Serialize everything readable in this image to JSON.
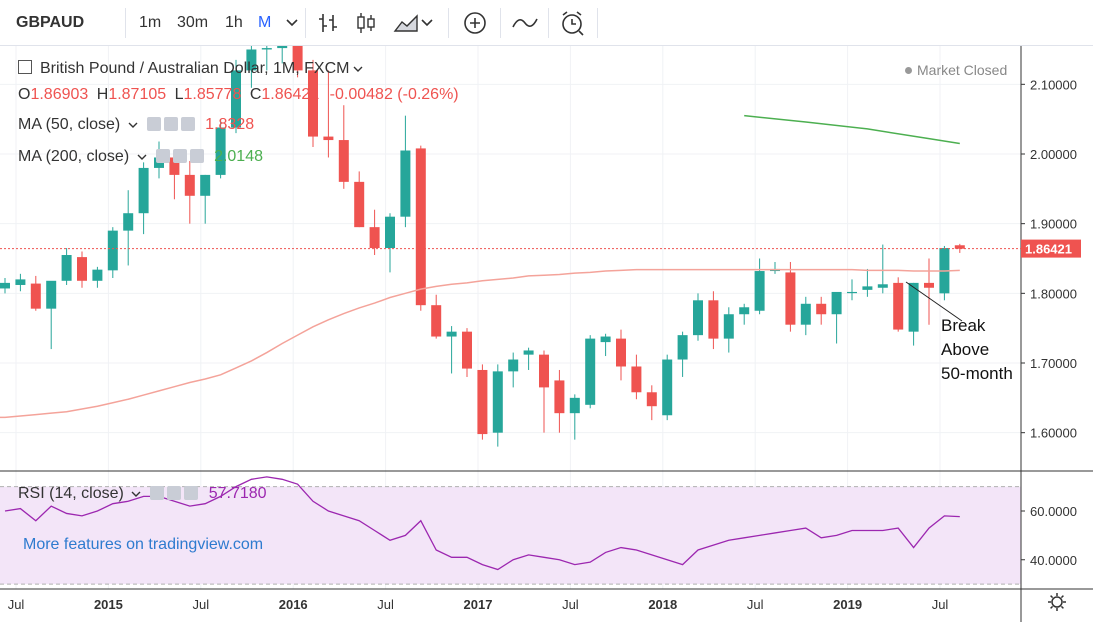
{
  "toolbar": {
    "symbol": "GBPAUD",
    "intervals": [
      "1m",
      "30m",
      "1h",
      "M"
    ],
    "active_interval": "M",
    "icons": [
      "chevron-down-icon",
      "bar-style-icon",
      "candle-style-icon",
      "area-style-icon",
      "add-indicator-icon",
      "compare-icon",
      "alert-clock-icon"
    ]
  },
  "legend": {
    "title": "British Pound / Australian Dollar, 1M, FXCM",
    "market_status": "Market Closed",
    "ohlc": {
      "O": "1.86903",
      "H": "1.87105",
      "L": "1.85778",
      "C": "1.86421",
      "change": "-0.00482 (-0.26%)"
    },
    "ma50": {
      "label": "MA (50, close)",
      "value": "1.8328",
      "color": "#f4a39a"
    },
    "ma200": {
      "label": "MA (200, close)",
      "value": "2.0148",
      "color": "#4caf50"
    },
    "rsi": {
      "label": "RSI (14, close)",
      "value": "57.7180",
      "color": "#9c27b0"
    },
    "more_features": "More features on tradingview.com"
  },
  "annotation": {
    "lines": [
      "Break",
      "Above",
      "50-month"
    ]
  },
  "chart_data": {
    "type": "candlestick",
    "symbol": "GBPAUD",
    "interval": "1M",
    "price_axis": {
      "ticks": [
        "2.10000",
        "2.00000",
        "1.90000",
        "1.80000",
        "1.70000",
        "1.60000"
      ],
      "range": [
        1.545,
        2.155
      ]
    },
    "last_price": "1.86421",
    "colors": {
      "up": "#26a69a",
      "down": "#ef5350",
      "ma50": "#f4a39a",
      "ma200": "#4caf50",
      "rsi": "#9c27b0",
      "rsi_band": "#f3e5f8"
    },
    "time_axis": [
      "Jul",
      "2015",
      "Jul",
      "2016",
      "Jul",
      "2017",
      "Jul",
      "2018",
      "Jul",
      "2019",
      "Jul"
    ],
    "candles": [
      [
        1.807,
        1.822,
        1.8,
        1.815
      ],
      [
        1.812,
        1.828,
        1.803,
        1.82
      ],
      [
        1.814,
        1.825,
        1.775,
        1.778
      ],
      [
        1.778,
        1.815,
        1.72,
        1.818
      ],
      [
        1.818,
        1.865,
        1.812,
        1.855
      ],
      [
        1.852,
        1.86,
        1.808,
        1.818
      ],
      [
        1.818,
        1.838,
        1.808,
        1.834
      ],
      [
        1.833,
        1.895,
        1.822,
        1.89
      ],
      [
        1.89,
        1.948,
        1.84,
        1.915
      ],
      [
        1.915,
        1.988,
        1.885,
        1.98
      ],
      [
        1.98,
        2.018,
        1.965,
        1.995
      ],
      [
        1.995,
        2.005,
        1.935,
        1.97
      ],
      [
        1.97,
        1.99,
        1.9,
        1.94
      ],
      [
        1.94,
        1.97,
        1.9,
        1.97
      ],
      [
        1.97,
        2.05,
        1.965,
        2.038
      ],
      [
        2.038,
        2.135,
        2.03,
        2.12
      ],
      [
        2.12,
        2.16,
        2.095,
        2.15
      ],
      [
        2.15,
        2.17,
        2.12,
        2.152
      ],
      [
        2.152,
        2.165,
        2.13,
        2.155
      ],
      [
        2.155,
        2.18,
        2.11,
        2.12
      ],
      [
        2.12,
        2.135,
        2.01,
        2.025
      ],
      [
        2.025,
        2.12,
        1.995,
        2.02
      ],
      [
        2.02,
        2.07,
        1.95,
        1.96
      ],
      [
        1.96,
        1.975,
        1.895,
        1.895
      ],
      [
        1.895,
        1.92,
        1.855,
        1.865
      ],
      [
        1.865,
        1.915,
        1.83,
        1.91
      ],
      [
        1.91,
        2.055,
        1.895,
        2.005
      ],
      [
        2.008,
        2.012,
        1.775,
        1.783
      ],
      [
        1.783,
        1.798,
        1.735,
        1.738
      ],
      [
        1.738,
        1.753,
        1.685,
        1.745
      ],
      [
        1.745,
        1.75,
        1.68,
        1.692
      ],
      [
        1.69,
        1.698,
        1.59,
        1.598
      ],
      [
        1.6,
        1.698,
        1.58,
        1.688
      ],
      [
        1.688,
        1.715,
        1.665,
        1.705
      ],
      [
        1.712,
        1.722,
        1.69,
        1.718
      ],
      [
        1.712,
        1.718,
        1.6,
        1.665
      ],
      [
        1.675,
        1.69,
        1.6,
        1.628
      ],
      [
        1.628,
        1.655,
        1.59,
        1.65
      ],
      [
        1.64,
        1.74,
        1.635,
        1.735
      ],
      [
        1.73,
        1.742,
        1.71,
        1.738
      ],
      [
        1.735,
        1.748,
        1.675,
        1.695
      ],
      [
        1.695,
        1.712,
        1.648,
        1.658
      ],
      [
        1.658,
        1.668,
        1.618,
        1.638
      ],
      [
        1.625,
        1.712,
        1.618,
        1.705
      ],
      [
        1.705,
        1.745,
        1.68,
        1.74
      ],
      [
        1.74,
        1.8,
        1.732,
        1.79
      ],
      [
        1.79,
        1.803,
        1.72,
        1.735
      ],
      [
        1.735,
        1.78,
        1.715,
        1.77
      ],
      [
        1.77,
        1.785,
        1.755,
        1.78
      ],
      [
        1.775,
        1.85,
        1.77,
        1.832
      ],
      [
        1.832,
        1.845,
        1.828,
        1.835
      ],
      [
        1.83,
        1.845,
        1.745,
        1.755
      ],
      [
        1.755,
        1.795,
        1.74,
        1.785
      ],
      [
        1.785,
        1.795,
        1.755,
        1.77
      ],
      [
        1.77,
        1.8,
        1.728,
        1.802
      ],
      [
        1.802,
        1.82,
        1.79,
        1.802
      ],
      [
        1.805,
        1.835,
        1.795,
        1.81
      ],
      [
        1.808,
        1.87,
        1.8,
        1.813
      ],
      [
        1.815,
        1.823,
        1.745,
        1.748
      ],
      [
        1.745,
        1.815,
        1.725,
        1.815
      ],
      [
        1.815,
        1.85,
        1.755,
        1.808
      ],
      [
        1.8,
        1.868,
        1.79,
        1.865
      ],
      [
        1.869,
        1.871,
        1.858,
        1.864
      ]
    ],
    "ma50": [
      1.622,
      1.624,
      1.626,
      1.628,
      1.63,
      1.634,
      1.638,
      1.643,
      1.648,
      1.654,
      1.66,
      1.666,
      1.672,
      1.677,
      1.683,
      1.693,
      1.703,
      1.715,
      1.728,
      1.74,
      1.752,
      1.762,
      1.771,
      1.779,
      1.786,
      1.794,
      1.8,
      1.806,
      1.81,
      1.813,
      1.815,
      1.818,
      1.82,
      1.822,
      1.825,
      1.826,
      1.827,
      1.829,
      1.83,
      1.832,
      1.833,
      1.834,
      1.834,
      1.834,
      1.834,
      1.834,
      1.834,
      1.834,
      1.834,
      1.834,
      1.834,
      1.834,
      1.834,
      1.834,
      1.834,
      1.834,
      1.833,
      1.833,
      1.833,
      1.832,
      1.832,
      1.832,
      1.833
    ],
    "ma200": [
      [
        48,
        2.055
      ],
      [
        52,
        2.046
      ],
      [
        56,
        2.036
      ],
      [
        60,
        2.022
      ],
      [
        62,
        2.015
      ]
    ],
    "rsi_axis": {
      "ticks": [
        "60.0000",
        "40.0000"
      ],
      "range": [
        28,
        76
      ],
      "band": [
        30,
        70
      ]
    },
    "rsi": [
      60,
      61,
      56,
      62,
      59,
      58,
      60,
      63,
      64,
      66,
      66,
      64,
      62,
      63,
      66,
      70,
      73,
      74,
      73,
      71,
      64,
      60,
      58,
      56,
      52,
      48,
      50,
      56,
      44,
      41,
      41,
      38,
      36,
      40,
      42,
      41,
      40,
      38,
      39,
      43,
      45,
      44,
      42,
      40,
      38,
      44,
      46,
      48,
      49,
      50,
      51,
      52,
      53,
      49,
      50,
      52,
      52,
      52,
      53,
      45,
      53,
      58,
      57.7
    ]
  }
}
